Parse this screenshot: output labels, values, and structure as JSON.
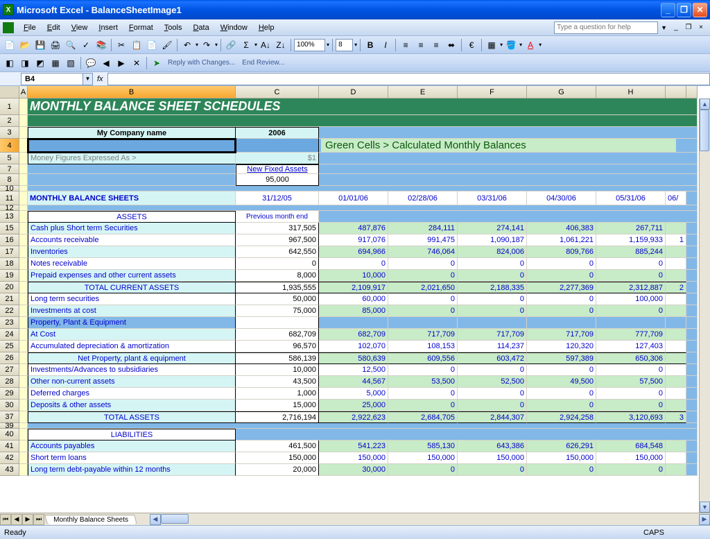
{
  "app": {
    "title": "Microsoft Excel - BalanceSheetImage1"
  },
  "menu": {
    "items": [
      "File",
      "Edit",
      "View",
      "Insert",
      "Format",
      "Tools",
      "Data",
      "Window",
      "Help"
    ],
    "help_placeholder": "Type a question for help"
  },
  "toolbar1": {
    "zoom": "100%",
    "fontsize": "8"
  },
  "toolbar2": {
    "reply": "Reply with Changes...",
    "endreview": "End Review..."
  },
  "namebox": {
    "ref": "B4"
  },
  "sheet": {
    "tab_name": "Monthly Balance Sheets",
    "columns": [
      "A",
      "B",
      "C",
      "D",
      "E",
      "F",
      "G",
      "H"
    ],
    "title": "MONTHLY BALANCE SHEET SCHEDULES",
    "company": "My Company name",
    "year": "2006",
    "note": "Green Cells > Calculated Monthly Balances",
    "money_label": "Money Figures Expressed As >",
    "money_val": "$1",
    "new_fixed_assets_label": "New Fixed Assets",
    "new_fixed_assets_val": "95,000",
    "section1": "MONTHLY BALANCE SHEETS",
    "prev_month": "Previous month end",
    "dates": [
      "31/12/05",
      "01/01/06",
      "02/28/06",
      "03/31/06",
      "04/30/06",
      "05/31/06",
      "06/"
    ],
    "assets_hdr": "ASSETS",
    "liabilities_hdr": "LIABILITIES",
    "rows": [
      {
        "r": 15,
        "label": "Cash plus Short term Securities",
        "vals": [
          "317,505",
          "487,876",
          "284,111",
          "274,141",
          "406,383",
          "267,711",
          ""
        ],
        "bg": "lg"
      },
      {
        "r": 16,
        "label": "Accounts receivable",
        "vals": [
          "967,500",
          "917,076",
          "991,475",
          "1,090,187",
          "1,061,221",
          "1,159,933",
          "1"
        ],
        "bg": "w"
      },
      {
        "r": 17,
        "label": "Inventories",
        "vals": [
          "642,550",
          "694,966",
          "746,064",
          "824,006",
          "809,766",
          "885,244",
          ""
        ],
        "bg": "lg"
      },
      {
        "r": 18,
        "label": "Notes receivable",
        "vals": [
          "0",
          "0",
          "0",
          "0",
          "0",
          "0",
          ""
        ],
        "bg": "w"
      },
      {
        "r": 19,
        "label": "Prepaid expenses and other current assets",
        "vals": [
          "8,000",
          "10,000",
          "0",
          "0",
          "0",
          "0",
          ""
        ],
        "bg": "lg"
      },
      {
        "r": 20,
        "label": "TOTAL CURRENT ASSETS",
        "vals": [
          "1,935,555",
          "2,109,917",
          "2,021,650",
          "2,188,335",
          "2,277,369",
          "2,312,887",
          "2"
        ],
        "bg": "lg",
        "indent": true,
        "tb": true
      },
      {
        "r": 21,
        "label": "Long term securities",
        "vals": [
          "50,000",
          "60,000",
          "0",
          "0",
          "0",
          "100,000",
          ""
        ],
        "bg": "w"
      },
      {
        "r": 22,
        "label": "Investments at cost",
        "vals": [
          "75,000",
          "85,000",
          "0",
          "0",
          "0",
          "0",
          ""
        ],
        "bg": "lg"
      },
      {
        "r": 23,
        "label": "Property, Plant & Equipment",
        "vals": [
          "",
          "",
          "",
          "",
          "",
          "",
          ""
        ],
        "bg": "mb"
      },
      {
        "r": 24,
        "label": "At Cost",
        "vals": [
          "682,709",
          "682,709",
          "717,709",
          "717,709",
          "717,709",
          "777,709",
          ""
        ],
        "bg": "lg"
      },
      {
        "r": 25,
        "label": "Accumulated depreciation & amortization",
        "vals": [
          "96,570",
          "102,070",
          "108,153",
          "114,237",
          "120,320",
          "127,403",
          ""
        ],
        "bg": "w"
      },
      {
        "r": 26,
        "label": "Net Property, plant & equipment",
        "vals": [
          "586,139",
          "580,639",
          "609,556",
          "603,472",
          "597,389",
          "650,306",
          ""
        ],
        "bg": "lg",
        "indent": true,
        "tb": true
      },
      {
        "r": 27,
        "label": "Investments/Advances to subsidiaries",
        "vals": [
          "10,000",
          "12,500",
          "0",
          "0",
          "0",
          "0",
          ""
        ],
        "bg": "w"
      },
      {
        "r": 28,
        "label": "Other non-current assets",
        "vals": [
          "43,500",
          "44,567",
          "53,500",
          "52,500",
          "49,500",
          "57,500",
          ""
        ],
        "bg": "lg"
      },
      {
        "r": 29,
        "label": "Deferred charges",
        "vals": [
          "1,000",
          "5,000",
          "0",
          "0",
          "0",
          "0",
          ""
        ],
        "bg": "w"
      },
      {
        "r": 30,
        "label": "Deposits & other assets",
        "vals": [
          "15,000",
          "25,000",
          "0",
          "0",
          "0",
          "0",
          ""
        ],
        "bg": "lg"
      },
      {
        "r": 37,
        "label": "TOTAL ASSETS",
        "vals": [
          "2,716,194",
          "2,922,623",
          "2,684,705",
          "2,844,307",
          "2,924,258",
          "3,120,693",
          "3"
        ],
        "bg": "lg",
        "indent": true,
        "tb": true
      },
      {
        "r": 41,
        "label": "Accounts payables",
        "vals": [
          "461,500",
          "541,223",
          "585,130",
          "643,386",
          "626,291",
          "684,548",
          ""
        ],
        "bg": "lg"
      },
      {
        "r": 42,
        "label": "Short term loans",
        "vals": [
          "150,000",
          "150,000",
          "150,000",
          "150,000",
          "150,000",
          "150,000",
          ""
        ],
        "bg": "w"
      },
      {
        "r": 43,
        "label": "Long term debt-payable within 12 months",
        "vals": [
          "20,000",
          "30,000",
          "0",
          "0",
          "0",
          "0",
          ""
        ],
        "bg": "lg"
      }
    ]
  },
  "status": {
    "ready": "Ready",
    "caps": "CAPS"
  }
}
